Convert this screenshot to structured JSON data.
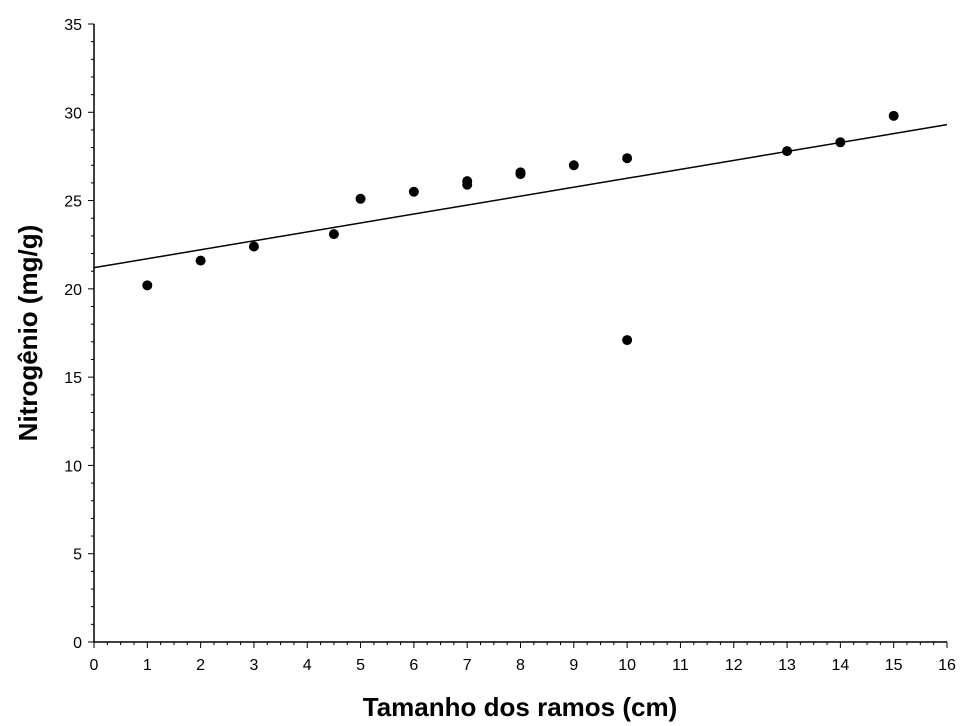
{
  "chart_data": {
    "type": "scatter",
    "title": "",
    "xlabel": "Tamanho dos ramos (cm)",
    "ylabel": "Nitrogênio (mg/g)",
    "xlim": [
      0,
      16
    ],
    "ylim": [
      0,
      35
    ],
    "x_ticks": [
      "0",
      "1",
      "2",
      "3",
      "4",
      "5",
      "6",
      "7",
      "8",
      "9",
      "10",
      "11",
      "12",
      "13",
      "14",
      "15",
      "16"
    ],
    "y_ticks": [
      "0",
      "5",
      "10",
      "15",
      "20",
      "25",
      "30",
      "35"
    ],
    "grid": false,
    "legend": "none",
    "point_color": "#000000",
    "series": [
      {
        "points": [
          {
            "x": 1,
            "y": 20.2
          },
          {
            "x": 2,
            "y": 21.6
          },
          {
            "x": 3,
            "y": 22.4
          },
          {
            "x": 4.5,
            "y": 23.1
          },
          {
            "x": 5,
            "y": 25.1
          },
          {
            "x": 6,
            "y": 25.5
          },
          {
            "x": 7,
            "y": 25.9
          },
          {
            "x": 7,
            "y": 26.1
          },
          {
            "x": 8,
            "y": 26.5
          },
          {
            "x": 8,
            "y": 26.6
          },
          {
            "x": 9,
            "y": 27.0
          },
          {
            "x": 10,
            "y": 27.4
          },
          {
            "x": 10,
            "y": 17.1
          },
          {
            "x": 13,
            "y": 27.8
          },
          {
            "x": 14,
            "y": 28.3
          },
          {
            "x": 15,
            "y": 29.8
          }
        ]
      }
    ],
    "trendline": {
      "x": [
        0,
        16
      ],
      "y": [
        21.2,
        29.3
      ]
    }
  }
}
